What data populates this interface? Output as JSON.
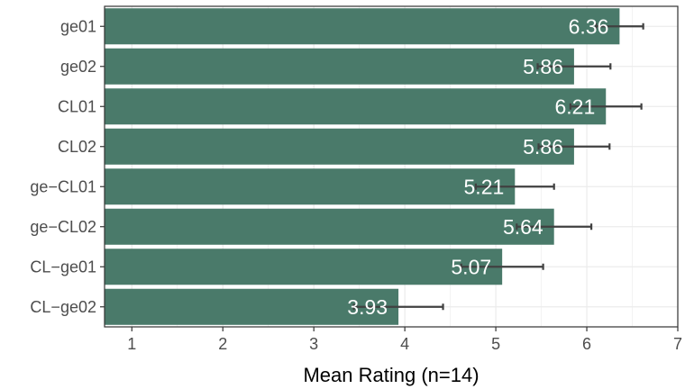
{
  "chart_data": {
    "type": "bar",
    "orientation": "horizontal",
    "categories": [
      "ge01",
      "ge02",
      "CL01",
      "CL02",
      "ge−CL01",
      "ge−CL02",
      "CL−ge01",
      "CL−ge02"
    ],
    "values": [
      6.36,
      5.86,
      6.21,
      5.86,
      5.21,
      5.64,
      5.07,
      3.93
    ],
    "value_labels": [
      "6.36",
      "5.86",
      "6.21",
      "5.86",
      "5.21",
      "5.64",
      "5.07",
      "3.93"
    ],
    "error": [
      0.26,
      0.4,
      0.39,
      0.39,
      0.43,
      0.41,
      0.45,
      0.49
    ],
    "xlabel": "Mean Rating (n=14)",
    "ylabel": "",
    "xlim": [
      0.7,
      7.0
    ],
    "xticks": [
      1,
      2,
      3,
      4,
      5,
      6,
      7
    ],
    "grid": true,
    "colors": {
      "bar": "#4a7a6a",
      "panel": "#ffffff",
      "grid": "#ebebeb",
      "errorbar": "#404040",
      "value_text": "#ffffff"
    }
  }
}
